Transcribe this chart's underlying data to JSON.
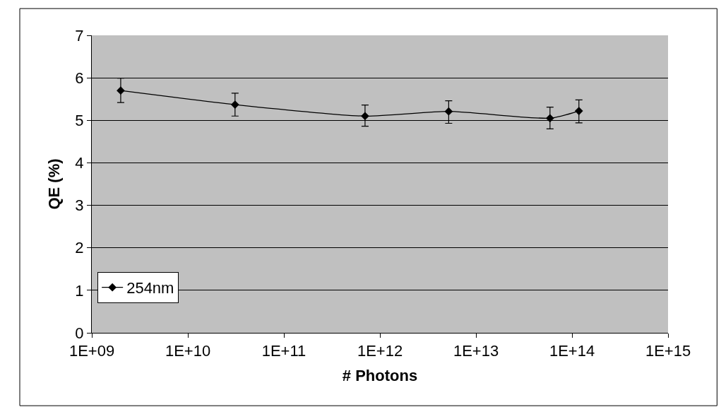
{
  "chart_data": {
    "type": "line",
    "xlabel": "# Photons",
    "ylabel": "QE (%)",
    "x": [
      2000000000.0,
      31000000000.0,
      700000000000.0,
      5200000000000.0,
      59000000000000.0,
      118000000000000.0
    ],
    "series": [
      {
        "name": "254nm",
        "color": "#000000",
        "values": [
          5.7,
          5.37,
          5.1,
          5.21,
          5.05,
          5.22
        ],
        "errors": [
          [
            5.42,
            5.99
          ],
          [
            5.1,
            5.64
          ],
          [
            4.86,
            5.36
          ],
          [
            4.93,
            5.46
          ],
          [
            4.8,
            5.31
          ],
          [
            4.94,
            5.48
          ]
        ]
      }
    ],
    "log": "x",
    "xlim": [
      1000000000.0,
      1000000000000000.0
    ],
    "xticks": [
      {
        "value": 1000000000.0,
        "label": "1E+09"
      },
      {
        "value": 10000000000.0,
        "label": "1E+10"
      },
      {
        "value": 100000000000.0,
        "label": "1E+11"
      },
      {
        "value": 1000000000000.0,
        "label": "1E+12"
      },
      {
        "value": 10000000000000.0,
        "label": "1E+13"
      },
      {
        "value": 100000000000000.0,
        "label": "1E+14"
      },
      {
        "value": 1000000000000000.0,
        "label": "1E+15"
      }
    ],
    "ylim": [
      0,
      7
    ],
    "yticks": [
      0,
      1,
      2,
      3,
      4,
      5,
      6,
      7
    ],
    "grid": "y",
    "legend": "bottom left",
    "marker": "diamond",
    "line_style": "solid"
  }
}
